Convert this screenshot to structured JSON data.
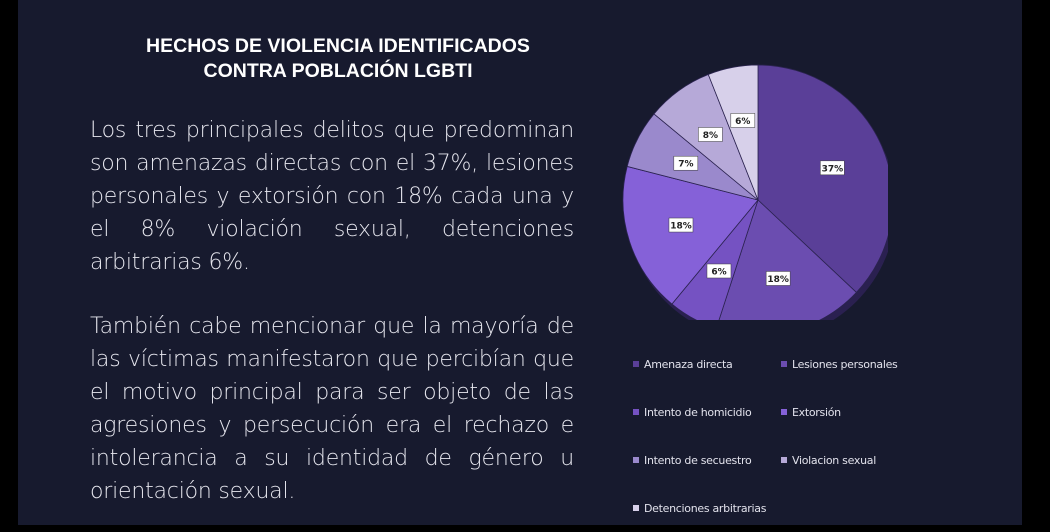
{
  "slide": {
    "title_line1": "HECHOS DE VIOLENCIA IDENTIFICADOS",
    "title_line2": "CONTRA POBLACIÓN LGBTI",
    "paragraph1": "Los tres principales delitos que predominan son amenazas directas con el 37%, lesiones personales y extorsión con 18%  cada una y el 8% violación sexual, detenciones arbitrarias 6%.",
    "paragraph2": "También cabe mencionar que la mayoría de las víctimas manifestaron que percibían que el motivo principal para ser objeto de las agresiones y persecución era el rechazo e intolerancia a su identidad de género u orientación sexual."
  },
  "chart_data": {
    "type": "pie",
    "title": "",
    "legend_position": "bottom",
    "categories": [
      "Amenaza directa",
      "Lesiones personales",
      "Intento de homicidio",
      "Extorsión",
      "Intento de secuestro",
      "Violacion sexual",
      "Detenciones arbitrarias"
    ],
    "values": [
      37,
      18,
      6,
      18,
      7,
      8,
      6
    ],
    "labels": [
      "37%",
      "18%",
      "6%",
      "18%",
      "7%",
      "8%",
      "6%"
    ],
    "colors": [
      "#5a3f98",
      "#6b4db0",
      "#7552c2",
      "#8561d8",
      "#9a89cc",
      "#b6a9d8",
      "#d7d0ea"
    ]
  }
}
